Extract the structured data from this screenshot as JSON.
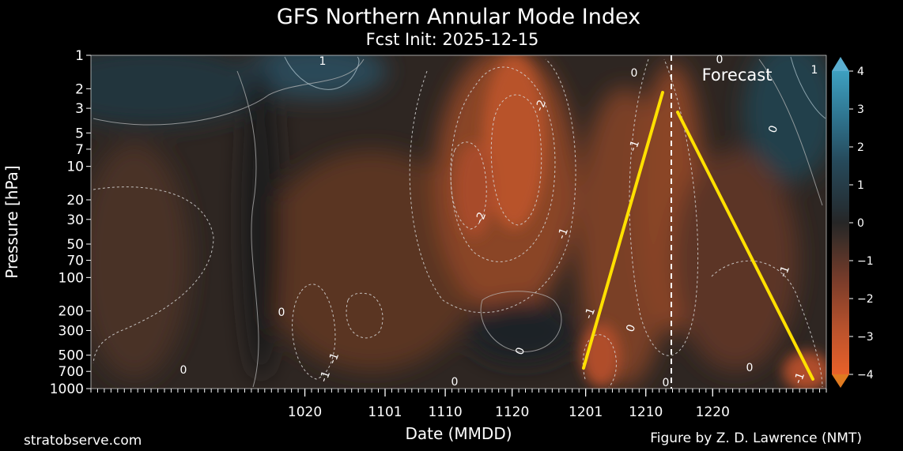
{
  "chart_data": {
    "type": "heatmap",
    "title": "GFS Northern Annular Mode Index",
    "subtitle": "Fcst Init: 2025-12-15",
    "xlabel": "Date (MMDD)",
    "ylabel": "Pressure [hPa]",
    "x_tick_labels": [
      "1020",
      "1101",
      "1110",
      "1120",
      "1201",
      "1210",
      "1220"
    ],
    "y_tick_labels": [
      "1",
      "2",
      "3",
      "5",
      "7",
      "10",
      "20",
      "30",
      "50",
      "70",
      "100",
      "200",
      "300",
      "500",
      "700",
      "1000"
    ],
    "y_scale": "log",
    "y_range_hpa": [
      1000,
      1
    ],
    "colorbar": {
      "tick_labels": [
        "4",
        "3",
        "2",
        "1",
        "0",
        "−1",
        "−2",
        "−3",
        "−4"
      ],
      "range": [
        -4,
        4
      ],
      "negative_color": "#d8562a",
      "positive_color": "#3ea0c0",
      "neutral_color": "#2a2a2a"
    },
    "annotation": "Forecast",
    "contour_labels": [
      "1",
      "0",
      "1",
      "0",
      "-2",
      "-1",
      "0",
      "-2",
      "-1",
      "-1",
      "0",
      "0",
      "-1",
      "0",
      "-1",
      "0",
      "-1",
      "0",
      "-1",
      "0",
      "0"
    ],
    "grid": false,
    "highlight_lines_color": "#ffe000"
  },
  "footer": {
    "left": "stratobserve.com",
    "right": "Figure by Z. D. Lawrence (NMT)"
  }
}
